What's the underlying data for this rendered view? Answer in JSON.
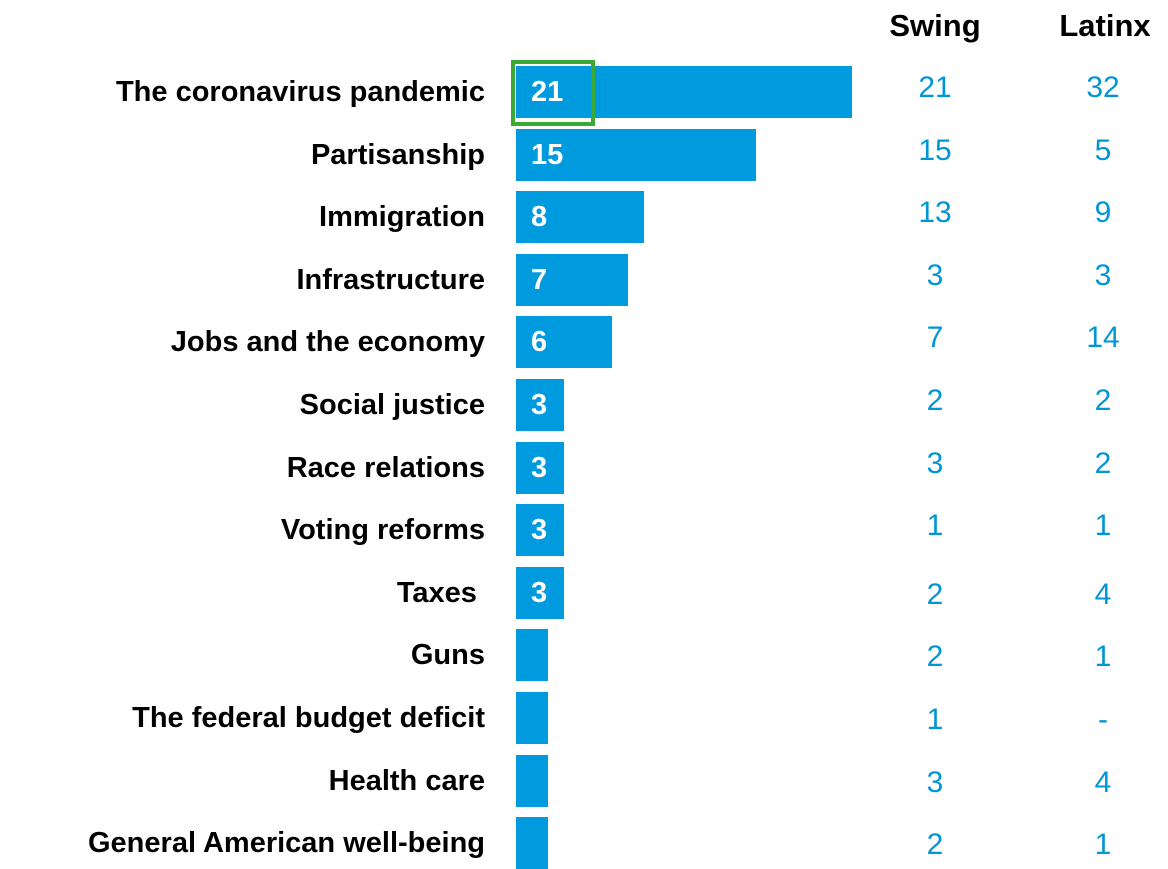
{
  "columns": {
    "swing": "Swing",
    "latinx": "Latinx"
  },
  "colors": {
    "bar": "#009ade",
    "side_values": "#0096d6",
    "highlight": "#3aaa35",
    "bar_label": "#ffffff"
  },
  "chart_data": {
    "type": "bar",
    "orientation": "horizontal",
    "categories": [
      "The coronavirus pandemic",
      "Partisanship",
      "Immigration",
      "Infrastructure",
      "Jobs and the economy",
      "Social justice",
      "Race relations",
      "Voting reforms",
      "Taxes ",
      "Guns",
      "The federal budget deficit",
      "Health care",
      "General American well-being"
    ],
    "values": [
      21,
      15,
      8,
      7,
      6,
      3,
      3,
      3,
      3,
      2,
      2,
      2,
      2
    ],
    "data_labels": [
      "21",
      "15",
      "8",
      "7",
      "6",
      "3",
      "3",
      "3",
      "3",
      "",
      "",
      "",
      ""
    ],
    "highlighted_index": 0,
    "swing": [
      "21",
      "15",
      "13",
      "3",
      "7",
      "2",
      "3",
      "1",
      "2",
      "2",
      "1",
      "3",
      "2"
    ],
    "latinx": [
      "32",
      "5",
      "9",
      "3",
      "14",
      "2",
      "2",
      "1",
      "4",
      "1",
      "-",
      "4",
      "1"
    ],
    "xlim": [
      0,
      21
    ],
    "grid": false,
    "legend": "none"
  }
}
